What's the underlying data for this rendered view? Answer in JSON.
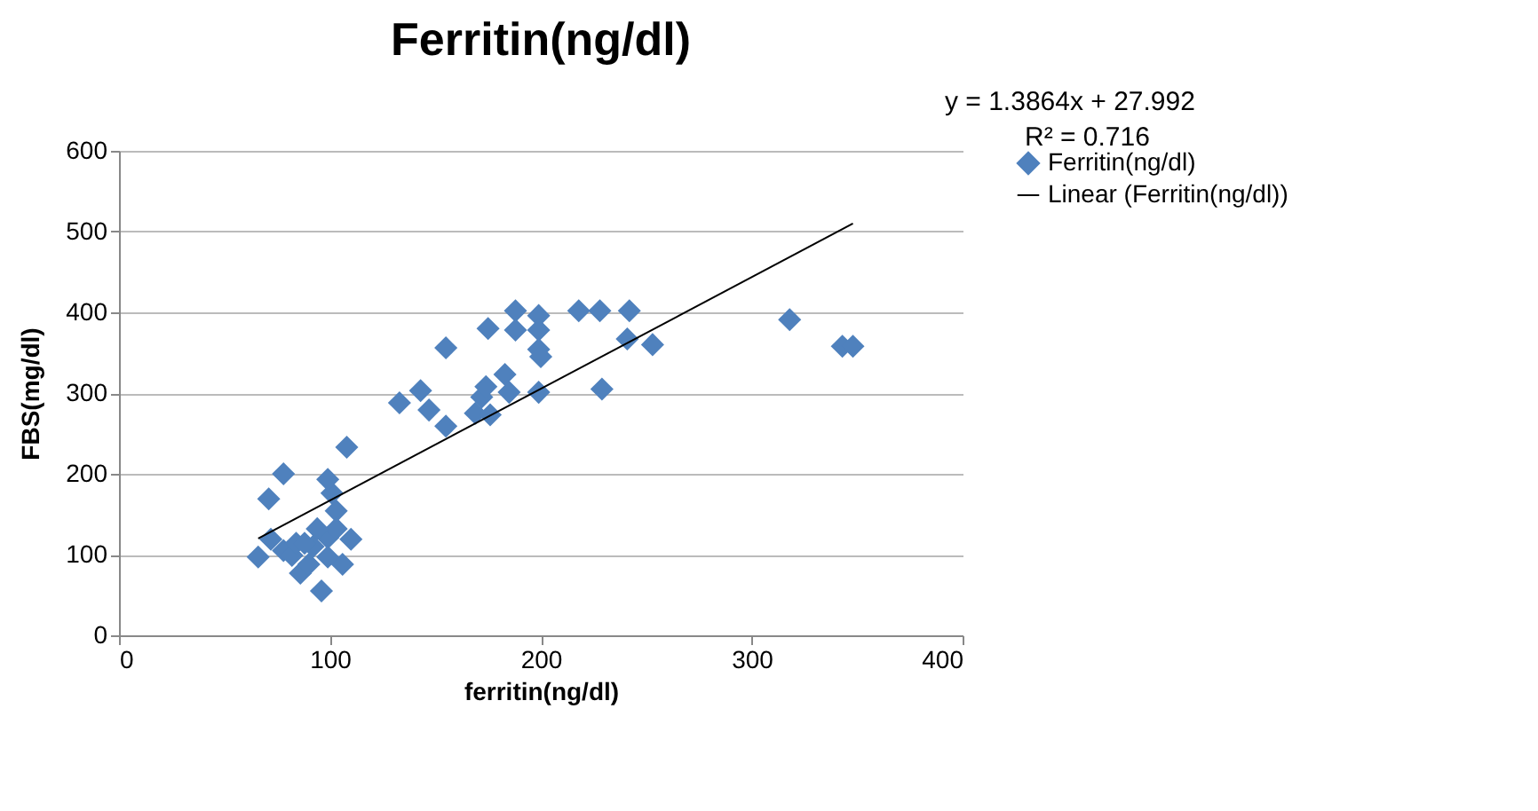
{
  "chart_data": {
    "type": "scatter",
    "title": "Ferritin(ng/dl)",
    "xlabel": "ferritin(ng/dl)",
    "ylabel": "FBS(mg/dl)",
    "annotations": [
      "y = 1.3864x + 27.992",
      "R² = 0.716"
    ],
    "xlim": [
      0,
      400
    ],
    "xticks": [
      0,
      100,
      200,
      300,
      400
    ],
    "ylim": [
      0,
      600
    ],
    "yticks": [
      0,
      100,
      200,
      300,
      400,
      500,
      600
    ],
    "grid": "y",
    "legend": "right",
    "marker": "diamond",
    "series": [
      {
        "name": "Ferritin(ng/dl)",
        "color": "#4f81bd",
        "x": [
          66,
          71,
          78,
          72,
          78,
          82,
          86,
          90,
          96,
          101,
          103,
          108,
          99,
          106,
          110,
          99,
          92,
          84,
          103,
          94,
          88,
          99,
          133,
          143,
          147,
          155,
          155,
          169,
          172,
          174,
          176,
          175,
          183,
          185,
          188,
          188,
          199,
          199,
          199,
          199,
          200,
          218,
          228,
          229,
          242,
          241,
          253,
          318,
          343,
          348
        ],
        "values": [
          97,
          169,
          200,
          119,
          105,
          99,
          77,
          88,
          55,
          176,
          154,
          233,
          121,
          88,
          119,
          97,
          110,
          114,
          132,
          132,
          114,
          193,
          288,
          303,
          279,
          356,
          259,
          275,
          295,
          308,
          273,
          380,
          323,
          301,
          402,
          378,
          396,
          378,
          354,
          301,
          345,
          402,
          402,
          305,
          402,
          367,
          360,
          391,
          358,
          358
        ]
      },
      {
        "name": "Linear (Ferritin(ng/dl))",
        "type": "line",
        "color": "#000000",
        "line_style": "solid",
        "marker": "none",
        "x": [
          66,
          348
        ],
        "values": [
          120,
          510
        ]
      }
    ]
  }
}
